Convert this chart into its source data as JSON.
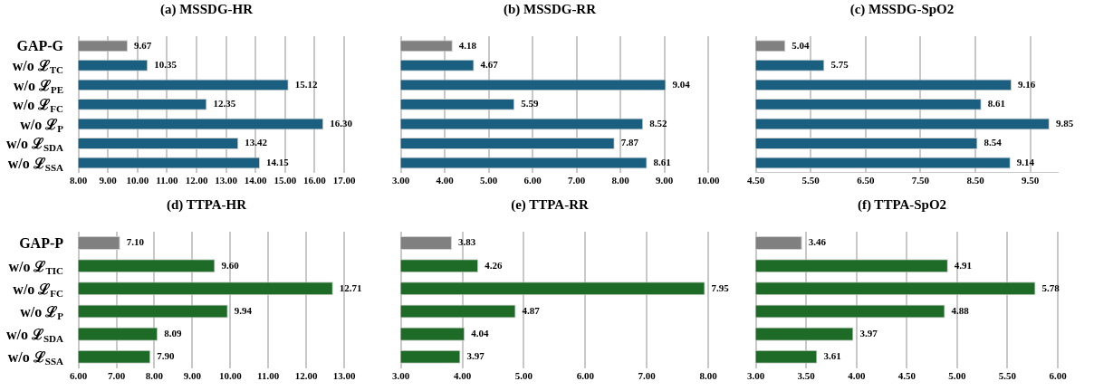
{
  "chart_data": [
    {
      "type": "bar",
      "orientation": "horizontal",
      "title": "(a) MSSDG-HR",
      "categories": [
        "GAP-G",
        "w/o ℒ$_{TC}$",
        "w/o ℒ$_{PE}$",
        "w/o ℒ$_{FC}$",
        "w/o ℒ$_{P}$",
        "w/o ℒ$_{SDA}$",
        "w/o ℒ$_{SSA}$"
      ],
      "values": [
        9.67,
        10.35,
        15.12,
        12.35,
        16.3,
        13.42,
        14.15
      ],
      "value_labels": [
        "9.67",
        "10.35",
        "15.12",
        "12.35",
        "16.30",
        "13.42",
        "14.15"
      ],
      "colors": [
        "#808080",
        "#1a5f80",
        "#1a5f80",
        "#1a5f80",
        "#1a5f80",
        "#1a5f80",
        "#1a5f80"
      ],
      "xlim": [
        8,
        17
      ],
      "xticks": [
        {
          "value": 8,
          "label": "8.00"
        },
        {
          "value": 9,
          "label": "9.00"
        },
        {
          "value": 10,
          "label": "10.00"
        },
        {
          "value": 11,
          "label": "11.00"
        },
        {
          "value": 12,
          "label": "12.00"
        },
        {
          "value": 13,
          "label": "13.00"
        },
        {
          "value": 14,
          "label": "14.00"
        },
        {
          "value": 15,
          "label": "15.00"
        },
        {
          "value": 16,
          "label": "16.00"
        },
        {
          "value": 17,
          "label": "17.00"
        }
      ],
      "grid": "x",
      "legend": false
    },
    {
      "type": "bar",
      "orientation": "horizontal",
      "title": "(b) MSSDG-RR",
      "categories": [
        null,
        null,
        null,
        null,
        null,
        null,
        null
      ],
      "values": [
        4.18,
        4.67,
        9.04,
        5.59,
        8.52,
        7.87,
        8.61
      ],
      "value_labels": [
        "4.18",
        "4.67",
        "9.04",
        "5.59",
        "8.52",
        "7.87",
        "8.61"
      ],
      "colors": [
        "#808080",
        "#1a5f80",
        "#1a5f80",
        "#1a5f80",
        "#1a5f80",
        "#1a5f80",
        "#1a5f80"
      ],
      "xlim": [
        3,
        10
      ],
      "xticks": [
        {
          "value": 3,
          "label": "3.00"
        },
        {
          "value": 4,
          "label": "4.00"
        },
        {
          "value": 5,
          "label": "5.00"
        },
        {
          "value": 6,
          "label": "6.00"
        },
        {
          "value": 7,
          "label": "7.00"
        },
        {
          "value": 8,
          "label": "8.00"
        },
        {
          "value": 9,
          "label": "9.00"
        },
        {
          "value": 10,
          "label": "10.00"
        }
      ],
      "grid": "x",
      "legend": false,
      "tick_labels": "x"
    },
    {
      "type": "bar",
      "orientation": "horizontal",
      "title": "(c) MSSDG-SpO2",
      "categories": [
        null,
        null,
        null,
        null,
        null,
        null,
        null
      ],
      "values": [
        5.04,
        5.75,
        9.16,
        8.61,
        9.85,
        8.54,
        9.14
      ],
      "value_labels": [
        "5.04",
        "5.75",
        "9.16",
        "8.61",
        "9.85",
        "8.54",
        "9.14"
      ],
      "colors": [
        "#808080",
        "#1a5f80",
        "#1a5f80",
        "#1a5f80",
        "#1a5f80",
        "#1a5f80",
        "#1a5f80"
      ],
      "xlim": [
        4.5,
        10
      ],
      "xticks": [
        {
          "value": 4.5,
          "label": "4.50"
        },
        {
          "value": 5.5,
          "label": "5.50"
        },
        {
          "value": 6.5,
          "label": "6.50"
        },
        {
          "value": 7.5,
          "label": "7.50"
        },
        {
          "value": 8.5,
          "label": "8.50"
        },
        {
          "value": 9.5,
          "label": "9.50"
        }
      ],
      "grid": "x",
      "legend": false,
      "tick_labels": "x"
    },
    {
      "type": "bar",
      "orientation": "horizontal",
      "title": "(d) TTPA-HR",
      "categories": [
        "GAP-P",
        "w/o ℒ$_{TIC}$",
        "w/o ℒ$_{FC}$",
        "w/o ℒ$_{P}$",
        "w/o ℒ$_{SDA}$",
        "w/o ℒ$_{SSA}$"
      ],
      "values": [
        7.1,
        9.6,
        12.71,
        9.94,
        8.09,
        7.9
      ],
      "value_labels": [
        "7.10",
        "9.60",
        "12.71",
        "9.94",
        "8.09",
        "7.90"
      ],
      "colors": [
        "#808080",
        "#1e6b27",
        "#1e6b27",
        "#1e6b27",
        "#1e6b27",
        "#1e6b27"
      ],
      "xlim": [
        6,
        13
      ],
      "xticks": [
        {
          "value": 6,
          "label": "6.00"
        },
        {
          "value": 7,
          "label": "7.00"
        },
        {
          "value": 8,
          "label": "8.00"
        },
        {
          "value": 9,
          "label": "9.00"
        },
        {
          "value": 10,
          "label": "10.00"
        },
        {
          "value": 11,
          "label": "11.00"
        },
        {
          "value": 12,
          "label": "12.00"
        },
        {
          "value": 13,
          "label": "13.00"
        }
      ],
      "grid": "x",
      "legend": false
    },
    {
      "type": "bar",
      "orientation": "horizontal",
      "title": "(e) TTPA-RR",
      "categories": [
        null,
        null,
        null,
        null,
        null,
        null
      ],
      "values": [
        3.83,
        4.26,
        7.95,
        4.87,
        4.04,
        3.97
      ],
      "value_labels": [
        "3.83",
        "4.26",
        "7.95",
        "4.87",
        "4.04",
        "3.97"
      ],
      "colors": [
        "#808080",
        "#1e6b27",
        "#1e6b27",
        "#1e6b27",
        "#1e6b27",
        "#1e6b27"
      ],
      "xlim": [
        3,
        8
      ],
      "xticks": [
        {
          "value": 3,
          "label": "3.00"
        },
        {
          "value": 4,
          "label": "4.00"
        },
        {
          "value": 5,
          "label": "5.00"
        },
        {
          "value": 6,
          "label": "6.00"
        },
        {
          "value": 7,
          "label": "7.00"
        },
        {
          "value": 8,
          "label": "8.00"
        }
      ],
      "grid": "x",
      "legend": false,
      "tick_labels": "x"
    },
    {
      "type": "bar",
      "orientation": "horizontal",
      "title": "(f) TTPA-SpO2",
      "categories": [
        null,
        null,
        null,
        null,
        null,
        null
      ],
      "values": [
        3.46,
        4.91,
        5.78,
        4.88,
        3.97,
        3.61
      ],
      "value_labels": [
        "3.46",
        "4.91",
        "5.78",
        "4.88",
        "3.97",
        "3.61"
      ],
      "colors": [
        "#808080",
        "#1e6b27",
        "#1e6b27",
        "#1e6b27",
        "#1e6b27",
        "#1e6b27"
      ],
      "xlim": [
        3,
        6
      ],
      "xticks": [
        {
          "value": 3,
          "label": "3.00"
        },
        {
          "value": 3.5,
          "label": "3.50"
        },
        {
          "value": 4,
          "label": "4.00"
        },
        {
          "value": 4.5,
          "label": "4.50"
        },
        {
          "value": 5,
          "label": "5.00"
        },
        {
          "value": 5.5,
          "label": "5.50"
        },
        {
          "value": 6,
          "label": "6.00"
        }
      ],
      "grid": "x",
      "legend": false,
      "tick_labels": "x"
    }
  ]
}
